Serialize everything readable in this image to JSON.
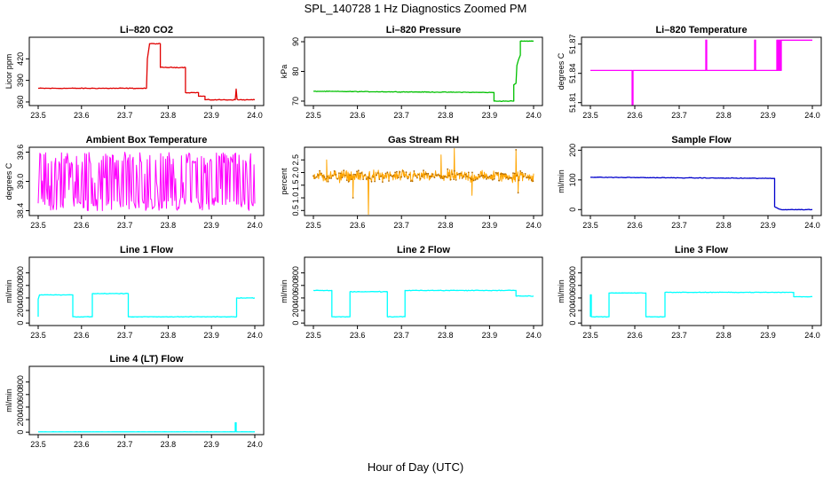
{
  "figure": {
    "title": "SPL_140728  1 Hz Diagnostics Zoomed PM",
    "xlabel": "Hour of Day (UTC)"
  },
  "chart_data": [
    {
      "id": "co2",
      "type": "line",
      "title": "Li–820 CO2",
      "ylabel": "Licor ppm",
      "color": "#e00000",
      "xlim": [
        23.5,
        24.0
      ],
      "xticks": [
        "23.5",
        "23.6",
        "23.7",
        "23.8",
        "23.9",
        "24.0"
      ],
      "ylim": [
        355,
        450
      ],
      "yticks": [
        {
          "v": 360,
          "label": "360"
        },
        {
          "v": 390,
          "label": "390"
        },
        {
          "v": 420,
          "label": "420"
        }
      ],
      "noise": 0.8,
      "x": [
        23.5,
        23.75,
        23.752,
        23.757,
        23.757,
        23.782,
        23.782,
        23.792,
        23.792,
        23.84,
        23.84,
        23.87,
        23.87,
        23.885,
        23.885,
        23.955,
        23.957,
        23.959,
        23.961,
        24.0
      ],
      "y": [
        379,
        379,
        420,
        440,
        441,
        441,
        408,
        408,
        408,
        408,
        373,
        373,
        368,
        368,
        363,
        363,
        378,
        364,
        363,
        363
      ]
    },
    {
      "id": "pressure",
      "type": "line",
      "title": "Li–820 Pressure",
      "ylabel": "kPa",
      "color": "#00c000",
      "xlim": [
        23.5,
        24.0
      ],
      "xticks": [
        "23.5",
        "23.6",
        "23.7",
        "23.8",
        "23.9",
        "24.0"
      ],
      "ylim": [
        68.5,
        91.5
      ],
      "yticks": [
        {
          "v": 70,
          "label": "70"
        },
        {
          "v": 80,
          "label": "80"
        },
        {
          "v": 90,
          "label": "90"
        }
      ],
      "noise": 0.15,
      "x": [
        23.5,
        23.7,
        23.91,
        23.91,
        23.955,
        23.955,
        23.96,
        23.962,
        23.966,
        23.97,
        23.97,
        24.0
      ],
      "y": [
        73.3,
        73.1,
        72.9,
        70.0,
        70.0,
        75.5,
        76.0,
        82.0,
        84.0,
        85.5,
        90.2,
        90.2
      ]
    },
    {
      "id": "temperature",
      "type": "line",
      "title": "Li–820 Temperature",
      "ylabel": "degrees C",
      "color": "#ff00ff",
      "xlim": [
        23.5,
        24.0
      ],
      "xticks": [
        "23.5",
        "23.6",
        "23.7",
        "23.8",
        "23.9",
        "24.0"
      ],
      "ylim": [
        51.807,
        51.877
      ],
      "yticks": [
        {
          "v": 51.81,
          "label": "51.81"
        },
        {
          "v": 51.84,
          "label": "51.84"
        },
        {
          "v": 51.87,
          "label": "51.87"
        }
      ],
      "noise": 0,
      "x": [
        23.5,
        23.594,
        23.594,
        23.596,
        23.596,
        23.76,
        23.76,
        23.762,
        23.762,
        23.87,
        23.87,
        23.872,
        23.872,
        23.92,
        23.92,
        23.921,
        23.921,
        23.923,
        23.923,
        23.925,
        23.925,
        23.927,
        23.927,
        23.929,
        23.929,
        23.93,
        23.93,
        24.0
      ],
      "y": [
        51.843,
        51.843,
        51.808,
        51.808,
        51.843,
        51.843,
        51.874,
        51.874,
        51.843,
        51.843,
        51.874,
        51.874,
        51.843,
        51.843,
        51.874,
        51.874,
        51.843,
        51.843,
        51.874,
        51.874,
        51.843,
        51.843,
        51.874,
        51.874,
        51.843,
        51.843,
        51.874,
        51.874
      ]
    },
    {
      "id": "ambient",
      "type": "line",
      "title": "Ambient Box Temperature",
      "ylabel": "degrees C",
      "color": "#ff00ff",
      "xlim": [
        23.5,
        24.0
      ],
      "xticks": [
        "23.5",
        "23.6",
        "23.7",
        "23.8",
        "23.9",
        "24.0"
      ],
      "ylim": [
        38.3,
        39.7
      ],
      "yticks": [
        {
          "v": 38.4,
          "label": "38.4"
        },
        {
          "v": 39.0,
          "label": "39.0"
        },
        {
          "v": 39.6,
          "label": "39.6"
        }
      ],
      "band": {
        "center": 39.0,
        "amp": 0.6,
        "n": 260,
        "style": "binary"
      }
    },
    {
      "id": "rh",
      "type": "line",
      "title": "Gas Stream RH",
      "ylabel": "percent",
      "color": "#ffa500",
      "xlim": [
        23.5,
        24.0
      ],
      "xticks": [
        "23.5",
        "23.6",
        "23.7",
        "23.8",
        "23.9",
        "24.0"
      ],
      "ylim": [
        0.3,
        3.0
      ],
      "yticks": [
        {
          "v": 0.5,
          "label": "0.5"
        },
        {
          "v": 1.0,
          "label": "1.0"
        },
        {
          "v": 1.5,
          "label": "1.5"
        },
        {
          "v": 2.0,
          "label": "2.0"
        },
        {
          "v": 2.5,
          "label": "2.5"
        }
      ],
      "band": {
        "center": 1.85,
        "amp": 0.35,
        "n": 420,
        "style": "gauss"
      },
      "spikes": [
        [
          23.53,
          2.5
        ],
        [
          23.59,
          1.0
        ],
        [
          23.625,
          0.35
        ],
        [
          23.79,
          2.7
        ],
        [
          23.82,
          2.95
        ],
        [
          23.86,
          1.1
        ],
        [
          23.96,
          2.9
        ],
        [
          23.965,
          1.2
        ]
      ]
    },
    {
      "id": "sample",
      "type": "line",
      "title": "Sample Flow",
      "ylabel": "ml/min",
      "color": "#0000cc",
      "xlim": [
        23.5,
        24.0
      ],
      "xticks": [
        "23.5",
        "23.6",
        "23.7",
        "23.8",
        "23.9",
        "24.0"
      ],
      "ylim": [
        -20,
        210
      ],
      "yticks": [
        {
          "v": 0,
          "label": "0"
        },
        {
          "v": 100,
          "label": "100"
        },
        {
          "v": 200,
          "label": "200"
        }
      ],
      "noise": 1.5,
      "x": [
        23.5,
        23.7,
        23.915,
        23.915,
        23.925,
        23.93,
        24.0
      ],
      "y": [
        109,
        107,
        105,
        10,
        2,
        0,
        0
      ]
    },
    {
      "id": "line1",
      "type": "line",
      "title": "Line 1 Flow",
      "ylabel": "ml/min",
      "color": "#00ffff",
      "xlim": [
        23.5,
        24.0
      ],
      "xticks": [
        "23.5",
        "23.6",
        "23.7",
        "23.8",
        "23.9",
        "24.0"
      ],
      "ylim": [
        -40,
        1050
      ],
      "yticks": [
        {
          "v": 0,
          "label": "0"
        },
        {
          "v": 200,
          "label": "200"
        },
        {
          "v": 400,
          "label": "400"
        },
        {
          "v": 600,
          "label": "600"
        },
        {
          "v": 800,
          "label": "800"
        }
      ],
      "noise": 6,
      "x": [
        23.5,
        23.5,
        23.503,
        23.58,
        23.58,
        23.625,
        23.625,
        23.708,
        23.708,
        23.958,
        23.958,
        24.0
      ],
      "y": [
        100,
        380,
        450,
        450,
        100,
        100,
        470,
        470,
        100,
        100,
        400,
        400
      ]
    },
    {
      "id": "line2",
      "type": "line",
      "title": "Line 2 Flow",
      "ylabel": "ml/min",
      "color": "#00ffff",
      "xlim": [
        23.5,
        24.0
      ],
      "xticks": [
        "23.5",
        "23.6",
        "23.7",
        "23.8",
        "23.9",
        "24.0"
      ],
      "ylim": [
        -40,
        1050
      ],
      "yticks": [
        {
          "v": 0,
          "label": "0"
        },
        {
          "v": 200,
          "label": "200"
        },
        {
          "v": 400,
          "label": "400"
        },
        {
          "v": 600,
          "label": "600"
        },
        {
          "v": 800,
          "label": "800"
        }
      ],
      "noise": 8,
      "x": [
        23.5,
        23.542,
        23.542,
        23.583,
        23.583,
        23.668,
        23.668,
        23.708,
        23.708,
        23.96,
        23.96,
        24.0
      ],
      "y": [
        520,
        520,
        100,
        100,
        500,
        500,
        100,
        100,
        520,
        520,
        430,
        430
      ]
    },
    {
      "id": "line3",
      "type": "line",
      "title": "Line 3 Flow",
      "ylabel": "ml/min",
      "color": "#00ffff",
      "xlim": [
        23.5,
        24.0
      ],
      "xticks": [
        "23.5",
        "23.6",
        "23.7",
        "23.8",
        "23.9",
        "24.0"
      ],
      "ylim": [
        -40,
        1050
      ],
      "yticks": [
        {
          "v": 0,
          "label": "0"
        },
        {
          "v": 200,
          "label": "200"
        },
        {
          "v": 400,
          "label": "400"
        },
        {
          "v": 600,
          "label": "600"
        },
        {
          "v": 800,
          "label": "800"
        }
      ],
      "noise": 6,
      "x": [
        23.5,
        23.5,
        23.502,
        23.502,
        23.542,
        23.542,
        23.625,
        23.625,
        23.668,
        23.668,
        23.958,
        23.958,
        24.0
      ],
      "y": [
        100,
        450,
        450,
        100,
        100,
        480,
        480,
        100,
        100,
        490,
        490,
        420,
        420
      ]
    },
    {
      "id": "line4",
      "type": "line",
      "title": "Line 4 (LT) Flow",
      "ylabel": "ml/min",
      "color": "#00ffff",
      "xlim": [
        23.5,
        24.0
      ],
      "xticks": [
        "23.5",
        "23.6",
        "23.7",
        "23.8",
        "23.9",
        "24.0"
      ],
      "ylim": [
        -40,
        1050
      ],
      "yticks": [
        {
          "v": 0,
          "label": "0"
        },
        {
          "v": 200,
          "label": "200"
        },
        {
          "v": 400,
          "label": "400"
        },
        {
          "v": 600,
          "label": "600"
        },
        {
          "v": 800,
          "label": "800"
        }
      ],
      "noise": 2,
      "x": [
        23.5,
        23.955,
        23.955,
        23.957,
        23.957,
        24.0
      ],
      "y": [
        5,
        5,
        150,
        150,
        5,
        5
      ]
    }
  ]
}
